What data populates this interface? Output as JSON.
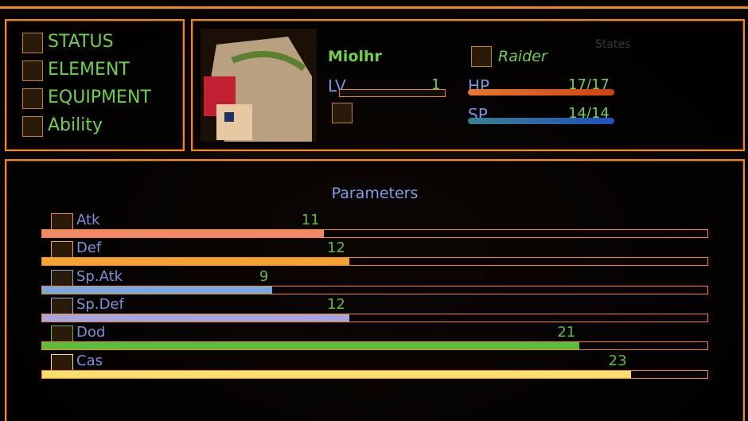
{
  "menu": [
    "STATUS",
    "ELEMENT",
    "EQUIPMENT",
    "Ability"
  ],
  "character": {
    "name": "Miolhr",
    "class": "Raider",
    "states_label": "States",
    "lv_label": "LV",
    "lv": "1",
    "hp_label": "HP",
    "hp": "17/17",
    "sp_label": "SP",
    "sp": "14/14"
  },
  "parameters": {
    "title": "Parameters",
    "xlim": [
      0,
      26
    ],
    "items": [
      {
        "name": "Atk",
        "value": 11,
        "color": "#f08a68"
      },
      {
        "name": "Def",
        "value": 12,
        "color": "#f5a432"
      },
      {
        "name": "Sp.Atk",
        "value": 9,
        "color": "#78a8e0"
      },
      {
        "name": "Sp.Def",
        "value": 12,
        "color": "#a8a4e0"
      },
      {
        "name": "Dod",
        "value": 21,
        "color": "#5cbc3c"
      },
      {
        "name": "Cas",
        "value": 23,
        "color": "#f8e070"
      }
    ]
  }
}
